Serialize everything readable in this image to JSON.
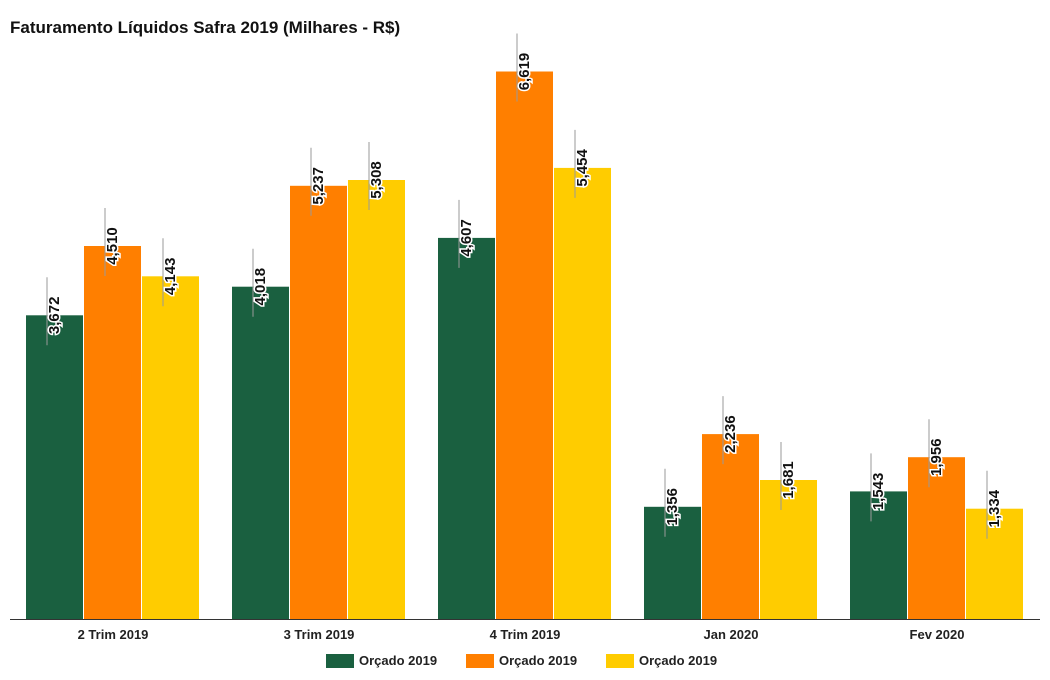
{
  "chart_data": {
    "type": "bar",
    "title": "Faturamento Líquidos Safra 2019 (Milhares - R$)",
    "categories": [
      "2 Trim 2019",
      "3 Trim 2019",
      "4 Trim 2019",
      "Jan 2020",
      "Fev 2020"
    ],
    "series": [
      {
        "name": "Orçado 2019",
        "color": "#1a6040",
        "values": [
          3672,
          4018,
          4607,
          1356,
          1543
        ],
        "labels": [
          "3,672",
          "4,018",
          "4,607",
          "1,356",
          "1,543"
        ]
      },
      {
        "name": "Orçado 2019",
        "color": "#ff7f00",
        "values": [
          4510,
          5237,
          6619,
          2236,
          1956
        ],
        "labels": [
          "4,510",
          "5,237",
          "6,619",
          "2,236",
          "1,956"
        ]
      },
      {
        "name": "Orçado 2019",
        "color": "#ffcc00",
        "values": [
          4143,
          5308,
          5454,
          1681,
          1334
        ],
        "labels": [
          "4,143",
          "5,308",
          "5,454",
          "1,681",
          "1,334"
        ]
      }
    ],
    "ylim": [
      0,
      7000
    ],
    "xlabel": "",
    "ylabel": "",
    "grid": false,
    "legend": "bottom-center"
  }
}
